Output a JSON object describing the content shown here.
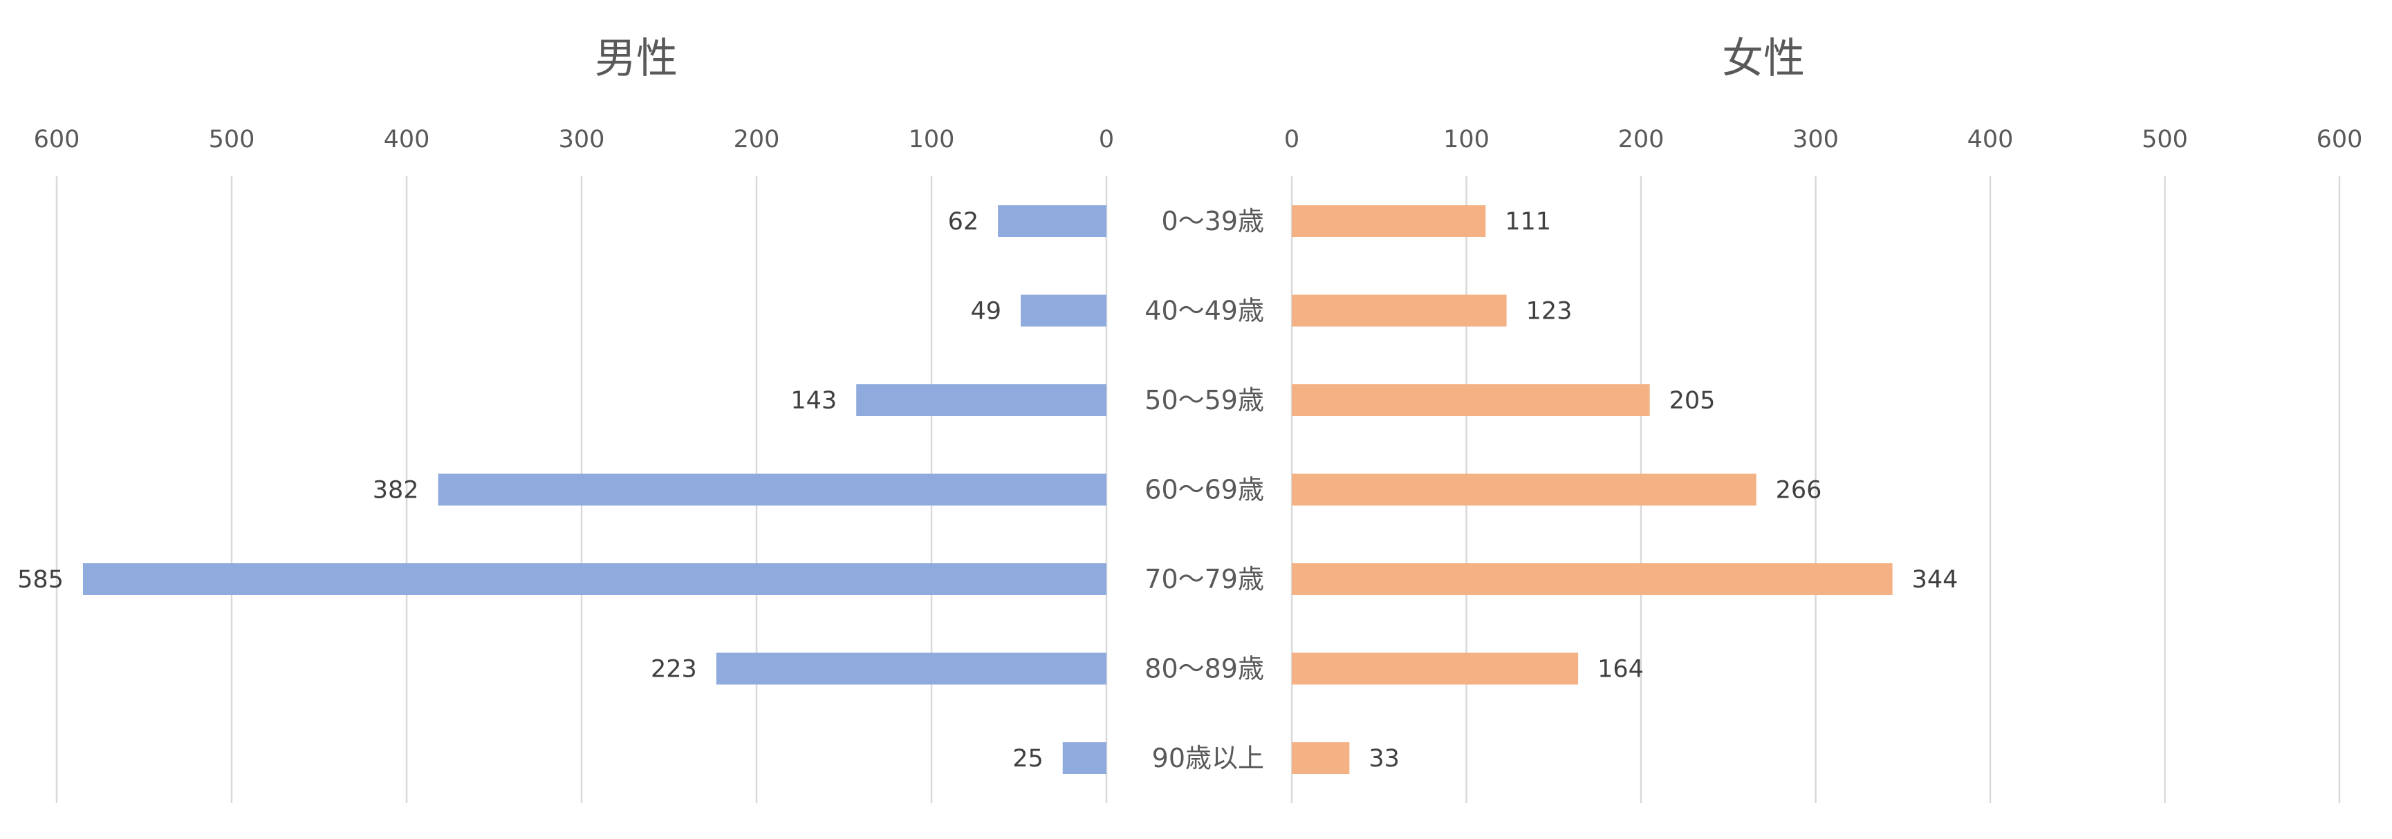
{
  "chart_data": [
    {
      "type": "bar",
      "orientation": "horizontal",
      "direction": "right-to-left",
      "title": "男性",
      "categories": [
        "0〜39歳",
        "40〜49歳",
        "50〜59歳",
        "60〜69歳",
        "70〜79歳",
        "80〜89歳",
        "90歳以上"
      ],
      "values": [
        62,
        49,
        143,
        382,
        585,
        223,
        25
      ],
      "xlim": [
        0,
        600
      ],
      "ticks": [
        600,
        500,
        400,
        300,
        200,
        100,
        0
      ],
      "grid": true,
      "legend": "none",
      "color": "#8faadc"
    },
    {
      "type": "bar",
      "orientation": "horizontal",
      "direction": "left-to-right",
      "title": "女性",
      "categories": [
        "0〜39歳",
        "40〜49歳",
        "50〜59歳",
        "60〜69歳",
        "70〜79歳",
        "80〜89歳",
        "90歳以上"
      ],
      "values": [
        111,
        123,
        205,
        266,
        344,
        164,
        33
      ],
      "xlim": [
        0,
        600
      ],
      "ticks": [
        0,
        100,
        200,
        300,
        400,
        500,
        600
      ],
      "grid": true,
      "legend": "none",
      "color": "#f4b183"
    }
  ]
}
